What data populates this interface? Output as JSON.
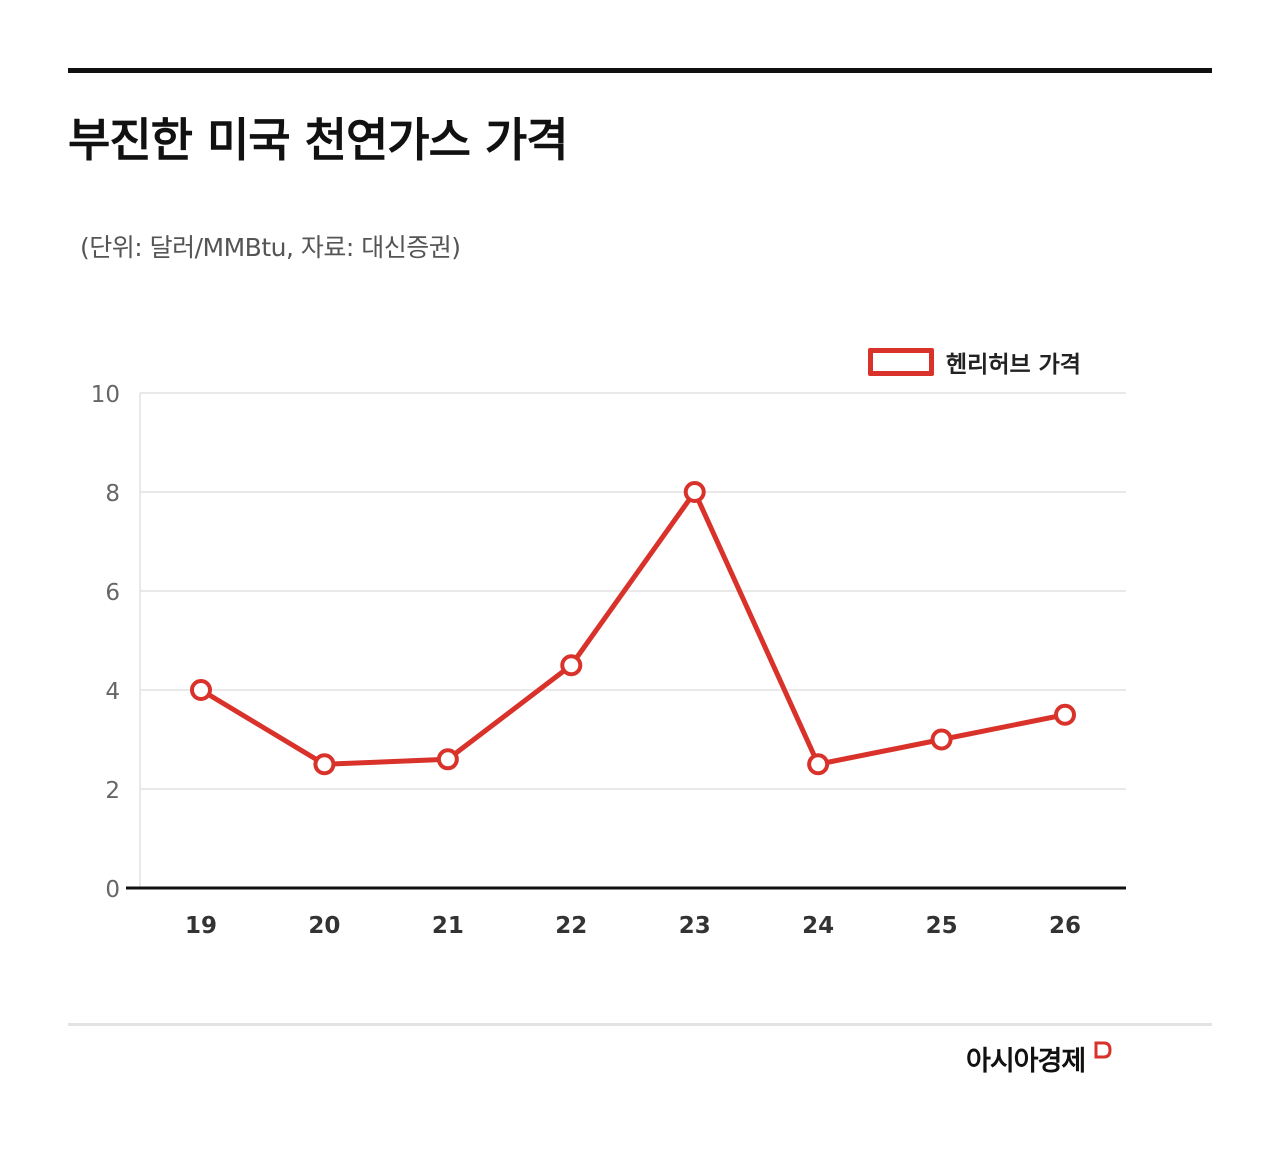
{
  "header": {
    "title": "부진한 미국 천연가스 가격",
    "subtitle": "(단위: 달러/MMBtu, 자료: 대신증권)"
  },
  "brand": {
    "name": "아시아경제",
    "color": "#d9322a"
  },
  "chart_data": {
    "type": "line",
    "title": "부진한 미국 천연가스 가격",
    "xlabel": "",
    "ylabel": "",
    "categories": [
      "19",
      "20",
      "21",
      "22",
      "23",
      "24",
      "25",
      "26"
    ],
    "series": [
      {
        "name": "헨리허브 가격",
        "values": [
          4.0,
          2.5,
          2.6,
          4.5,
          8.0,
          2.5,
          3.0,
          3.5
        ],
        "color": "#d9322a"
      }
    ],
    "yticks": [
      "0",
      "2",
      "4",
      "6",
      "8",
      "10"
    ],
    "ylim": [
      0,
      10
    ],
    "grid": true,
    "legend": "top-right"
  }
}
